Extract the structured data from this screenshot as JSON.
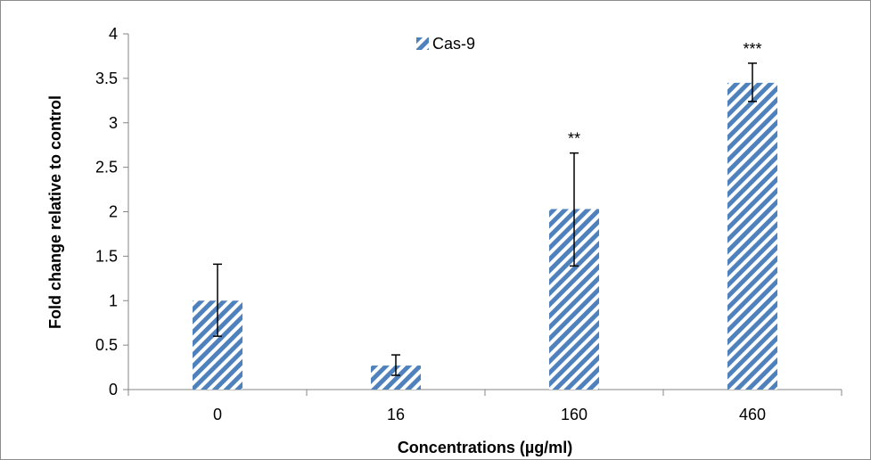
{
  "chart_data": {
    "type": "bar",
    "title": "",
    "xlabel": "Concentrations (µg/ml)",
    "ylabel": "Fold change relative to control",
    "categories": [
      "0",
      "16",
      "160",
      "460"
    ],
    "series": [
      {
        "name": "Cas-9",
        "values": [
          1.0,
          0.27,
          2.03,
          3.45
        ],
        "error_low": [
          0.6,
          0.16,
          1.39,
          3.24
        ],
        "error_high": [
          1.41,
          0.39,
          2.66,
          3.67
        ],
        "significance": [
          "",
          "",
          "**",
          "***"
        ]
      }
    ],
    "ylim": [
      0,
      4
    ],
    "yticks": [
      "0",
      "0.5",
      "1",
      "1.5",
      "2",
      "2.5",
      "3",
      "3.5",
      "4"
    ],
    "grid": false,
    "legend_position": "top-center",
    "bar_color": "#4f81bd",
    "bar_pattern": "diagonal-stripes"
  }
}
